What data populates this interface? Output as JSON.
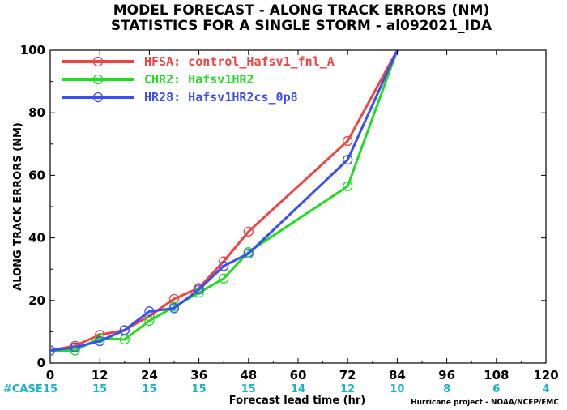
{
  "chart_data": {
    "type": "line",
    "title": "MODEL FORECAST - ALONG TRACK ERRORS (NM)",
    "subtitle": "STATISTICS FOR A SINGLE STORM - al092021_IDA",
    "xlabel": "Forecast lead time (hr)",
    "ylabel": "ALONG TRACK ERRORS (NM)",
    "xlim": [
      0,
      120
    ],
    "ylim": [
      0,
      100
    ],
    "x_ticks": [
      "0",
      "12",
      "24",
      "36",
      "48",
      "60",
      "72",
      "84",
      "96",
      "108",
      "120"
    ],
    "y_ticks": [
      "0",
      "20",
      "40",
      "60",
      "80",
      "100"
    ],
    "case_label": "#CASE",
    "case_counts": [
      {
        "x": 0,
        "n": "15"
      },
      {
        "x": 12,
        "n": "15"
      },
      {
        "x": 24,
        "n": "15"
      },
      {
        "x": 36,
        "n": "15"
      },
      {
        "x": 48,
        "n": "15"
      },
      {
        "x": 60,
        "n": "14"
      },
      {
        "x": 72,
        "n": "12"
      },
      {
        "x": 84,
        "n": "10"
      },
      {
        "x": 96,
        "n": "8"
      },
      {
        "x": 108,
        "n": "6"
      },
      {
        "x": 120,
        "n": "4"
      }
    ],
    "legend_position": "top-left",
    "credit": "Hurricane project - NOAA/NCEP/EMC",
    "series": [
      {
        "name": "HFSA: control_Hafsv1_fnl_A",
        "color": "#ef4444",
        "x": [
          0,
          6,
          12,
          18,
          24,
          30,
          36,
          42,
          48,
          72,
          84
        ],
        "y": [
          4,
          5.5,
          9,
          10.5,
          15,
          20.5,
          24,
          32.5,
          42,
          71,
          100
        ]
      },
      {
        "name": "CHR2: Hafsv1HR2",
        "color": "#22dd22",
        "x": [
          0,
          6,
          12,
          18,
          24,
          30,
          36,
          42,
          48,
          72,
          84
        ],
        "y": [
          4,
          4,
          8,
          7.5,
          13.5,
          18,
          22.5,
          27,
          35.5,
          56.5,
          100
        ]
      },
      {
        "name": "HR28: Hafsv1HR2cs_0p8",
        "color": "#3a4ff0",
        "x": [
          0,
          6,
          12,
          18,
          24,
          30,
          36,
          42,
          48,
          72,
          84
        ],
        "y": [
          4,
          5,
          7,
          10.5,
          16.5,
          17.5,
          23.5,
          31,
          35,
          65,
          100
        ]
      }
    ]
  }
}
